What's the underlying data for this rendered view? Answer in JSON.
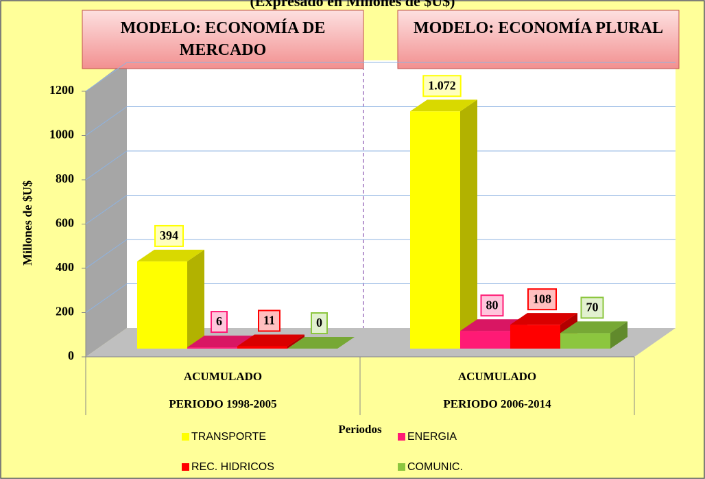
{
  "chart_data": {
    "type": "bar3d",
    "title": "(Expresado en Millones de $U$)",
    "annotations": [
      "MODELO: ECONOMÍA DE MERCADO",
      "MODELO: ECONOMÍA PLURAL"
    ],
    "y_label": "Millones de $U$",
    "x_label": "Periodos",
    "categories": [
      [
        "ACUMULADO",
        "PERIODO 1998-2005"
      ],
      [
        "ACUMULADO",
        "PERIODO 2006-2014"
      ]
    ],
    "series": [
      {
        "name": "TRANSPORTE",
        "color": "#ffff00",
        "values": [
          394,
          1072
        ],
        "value_labels": [
          "394",
          "1.072"
        ]
      },
      {
        "name": "ENERGIA",
        "color": "#ff1a75",
        "values": [
          6,
          80
        ]
      },
      {
        "name": "REC. HIDRICOS",
        "color": "#ff0000",
        "values": [
          11,
          108
        ]
      },
      {
        "name": "COMUNIC.",
        "color": "#8cc63f",
        "values": [
          0,
          70
        ]
      }
    ],
    "ylim": [
      0,
      1200
    ],
    "yticks": [
      0,
      200,
      400,
      600,
      800,
      1000,
      1200
    ],
    "grid": true
  }
}
